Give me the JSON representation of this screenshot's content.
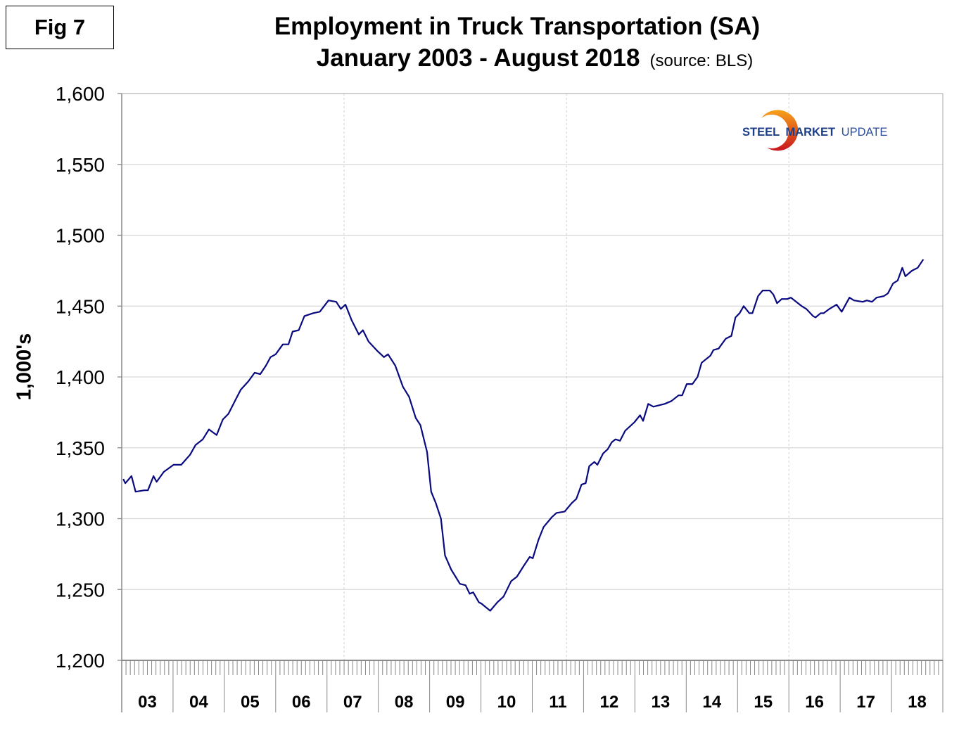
{
  "figure_label": "Fig 7",
  "logo_text": {
    "part1": "STEEL",
    "part2": "MARKET",
    "part3": "UPDATE"
  },
  "colors": {
    "line": "#0a0a80",
    "grid": "#d9d9d9",
    "logo_blue": "#1b3e8a",
    "logo_orange": "#f39a1e",
    "logo_red": "#c8161d"
  },
  "chart_data": {
    "type": "line",
    "title": "Employment in Truck Transportation (SA)",
    "subtitle": "January 2003 - August 2018",
    "source": "(source: BLS)",
    "xlabel": "",
    "ylabel": "1,000's",
    "xlim": [
      2003,
      2019
    ],
    "ylim": [
      1200,
      1600
    ],
    "yticks": [
      "1,200",
      "1,250",
      "1,300",
      "1,350",
      "1,400",
      "1,450",
      "1,500",
      "1,550",
      "1,600"
    ],
    "ytick_values": [
      1200,
      1250,
      1300,
      1350,
      1400,
      1450,
      1500,
      1550,
      1600
    ],
    "xtick_labels": [
      "03",
      "04",
      "05",
      "06",
      "07",
      "08",
      "09",
      "10",
      "11",
      "12",
      "13",
      "14",
      "15",
      "16",
      "17",
      "18"
    ],
    "grid": true,
    "series": [
      {
        "name": "Employment in Truck Transportation",
        "x": [
          2003.03,
          2003.07,
          2003.19,
          2003.27,
          2003.44,
          2003.51,
          2003.62,
          2003.68,
          2003.82,
          2004.01,
          2004.16,
          2004.33,
          2004.44,
          2004.58,
          2004.7,
          2004.85,
          2004.97,
          2005.08,
          2005.22,
          2005.32,
          2005.47,
          2005.59,
          2005.7,
          2005.81,
          2005.9,
          2006.0,
          2006.14,
          2006.25,
          2006.33,
          2006.45,
          2006.56,
          2006.73,
          2006.86,
          2007.03,
          2007.18,
          2007.27,
          2007.36,
          2007.48,
          2007.62,
          2007.7,
          2007.81,
          2007.99,
          2008.11,
          2008.19,
          2008.33,
          2008.48,
          2008.6,
          2008.73,
          2008.82,
          2008.95,
          2009.03,
          2009.12,
          2009.22,
          2009.3,
          2009.42,
          2009.59,
          2009.7,
          2009.78,
          2009.85,
          2009.96,
          2010.01,
          2010.18,
          2010.32,
          2010.44,
          2010.59,
          2010.7,
          2010.84,
          2010.95,
          2011.01,
          2011.12,
          2011.22,
          2011.38,
          2011.47,
          2011.63,
          2011.77,
          2011.86,
          2011.96,
          2012.04,
          2012.11,
          2012.21,
          2012.27,
          2012.38,
          2012.47,
          2012.55,
          2012.62,
          2012.71,
          2012.81,
          2012.99,
          2013.1,
          2013.16,
          2013.26,
          2013.36,
          2013.58,
          2013.71,
          2013.85,
          2013.92,
          2014.01,
          2014.12,
          2014.22,
          2014.3,
          2014.47,
          2014.53,
          2014.63,
          2014.77,
          2014.88,
          2014.96,
          2015.04,
          2015.12,
          2015.23,
          2015.29,
          2015.4,
          2015.49,
          2015.63,
          2015.7,
          2015.77,
          2015.86,
          2015.97,
          2016.04,
          2016.25,
          2016.34,
          2016.47,
          2016.52,
          2016.62,
          2016.68,
          2016.79,
          2016.93,
          2017.03,
          2017.18,
          2017.27,
          2017.44,
          2017.52,
          2017.62,
          2017.71,
          2017.85,
          2017.93,
          2018.03,
          2018.12,
          2018.21,
          2018.27,
          2018.4,
          2018.51,
          2018.62
        ],
        "values": [
          1328,
          1325,
          1330,
          1319,
          1320,
          1320,
          1330,
          1326,
          1333,
          1338,
          1338,
          1345,
          1352,
          1356,
          1363,
          1359,
          1370,
          1374,
          1384,
          1391,
          1397,
          1403,
          1402,
          1408,
          1414,
          1416,
          1423,
          1423,
          1432,
          1433,
          1443,
          1445,
          1446,
          1454,
          1453,
          1448,
          1451,
          1440,
          1430,
          1433,
          1425,
          1418,
          1414,
          1416,
          1408,
          1393,
          1386,
          1371,
          1366,
          1347,
          1319,
          1311,
          1300,
          1274,
          1264,
          1254,
          1253,
          1247,
          1248,
          1241,
          1240,
          1235,
          1241,
          1245,
          1256,
          1259,
          1267,
          1273,
          1272,
          1285,
          1294,
          1301,
          1304,
          1305,
          1311,
          1314,
          1324,
          1325,
          1337,
          1340,
          1338,
          1346,
          1349,
          1354,
          1356,
          1355,
          1362,
          1368,
          1373,
          1369,
          1381,
          1379,
          1381,
          1383,
          1387,
          1387,
          1395,
          1395,
          1400,
          1410,
          1415,
          1419,
          1420,
          1427,
          1429,
          1442,
          1445,
          1450,
          1445,
          1445,
          1457,
          1461,
          1461,
          1458,
          1452,
          1455,
          1455,
          1456,
          1450,
          1448,
          1443,
          1442,
          1445,
          1445,
          1448,
          1451,
          1446,
          1456,
          1454,
          1453,
          1454,
          1453,
          1456,
          1457,
          1459,
          1466,
          1468,
          1477,
          1471,
          1475,
          1477,
          1483
        ]
      }
    ]
  }
}
